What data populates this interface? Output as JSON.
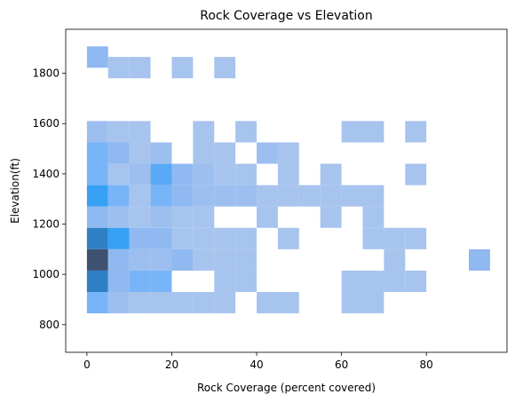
{
  "chart_data": {
    "type": "heatmap",
    "title": "Rock Coverage vs Elevation",
    "xlabel": "Rock Coverage (percent covered)",
    "ylabel": "Elevation(ft)",
    "xlim": [
      -5,
      99
    ],
    "ylim": [
      690,
      1975
    ],
    "x_ticks": [
      0,
      20,
      40,
      60,
      80
    ],
    "y_ticks": [
      800,
      1000,
      1200,
      1400,
      1600,
      1800
    ],
    "x_bin_width": 5,
    "y_bin_width": 85,
    "y_bin_start": 715,
    "grid": false,
    "colors": {
      "light": "#a7c4ee",
      "mid1": "#8fb9f0",
      "mid2": "#78b4f8",
      "mid3": "#5aa9f7",
      "bright": "#36a0f5",
      "dark1": "#2f7fc4",
      "dark2": "#2a6aa4",
      "darkest": "#3f5170"
    },
    "bins": [
      {
        "x": 0,
        "y": 1822,
        "color": "#8fb9f0"
      },
      {
        "x": 5,
        "y": 1780,
        "color": "#a7c4ee"
      },
      {
        "x": 10,
        "y": 1780,
        "color": "#a7c4ee"
      },
      {
        "x": 20,
        "y": 1780,
        "color": "#a7c4ee"
      },
      {
        "x": 30,
        "y": 1780,
        "color": "#a7c4ee"
      },
      {
        "x": 0,
        "y": 1525,
        "color": "#9dbff0"
      },
      {
        "x": 5,
        "y": 1525,
        "color": "#a7c4ee"
      },
      {
        "x": 10,
        "y": 1525,
        "color": "#a7c4ee"
      },
      {
        "x": 25,
        "y": 1525,
        "color": "#a7c4ee"
      },
      {
        "x": 35,
        "y": 1525,
        "color": "#a7c4ee"
      },
      {
        "x": 60,
        "y": 1525,
        "color": "#a7c4ee"
      },
      {
        "x": 65,
        "y": 1525,
        "color": "#a7c4ee"
      },
      {
        "x": 75,
        "y": 1525,
        "color": "#a7c4ee"
      },
      {
        "x": 0,
        "y": 1440,
        "color": "#78b4f8"
      },
      {
        "x": 5,
        "y": 1440,
        "color": "#8fb9f0"
      },
      {
        "x": 10,
        "y": 1440,
        "color": "#a7c4ee"
      },
      {
        "x": 15,
        "y": 1440,
        "color": "#9dbff0"
      },
      {
        "x": 25,
        "y": 1440,
        "color": "#a7c4ee"
      },
      {
        "x": 30,
        "y": 1440,
        "color": "#a7c4ee"
      },
      {
        "x": 40,
        "y": 1440,
        "color": "#9dbff0"
      },
      {
        "x": 45,
        "y": 1440,
        "color": "#a7c4ee"
      },
      {
        "x": 0,
        "y": 1355,
        "color": "#78b4f8"
      },
      {
        "x": 5,
        "y": 1355,
        "color": "#a7c4ee"
      },
      {
        "x": 10,
        "y": 1355,
        "color": "#9dbff0"
      },
      {
        "x": 15,
        "y": 1355,
        "color": "#5aa9f7"
      },
      {
        "x": 20,
        "y": 1355,
        "color": "#8fb9f0"
      },
      {
        "x": 25,
        "y": 1355,
        "color": "#9dbff0"
      },
      {
        "x": 30,
        "y": 1355,
        "color": "#a7c4ee"
      },
      {
        "x": 35,
        "y": 1355,
        "color": "#a7c4ee"
      },
      {
        "x": 45,
        "y": 1355,
        "color": "#a7c4ee"
      },
      {
        "x": 55,
        "y": 1355,
        "color": "#a7c4ee"
      },
      {
        "x": 75,
        "y": 1355,
        "color": "#a7c4ee"
      },
      {
        "x": 0,
        "y": 1270,
        "color": "#36a0f5"
      },
      {
        "x": 5,
        "y": 1270,
        "color": "#78b4f8"
      },
      {
        "x": 10,
        "y": 1270,
        "color": "#a7c4ee"
      },
      {
        "x": 15,
        "y": 1270,
        "color": "#78b4f8"
      },
      {
        "x": 20,
        "y": 1270,
        "color": "#8fb9f0"
      },
      {
        "x": 25,
        "y": 1270,
        "color": "#9dbff0"
      },
      {
        "x": 30,
        "y": 1270,
        "color": "#9dbff0"
      },
      {
        "x": 35,
        "y": 1270,
        "color": "#9dbff0"
      },
      {
        "x": 40,
        "y": 1270,
        "color": "#a7c4ee"
      },
      {
        "x": 45,
        "y": 1270,
        "color": "#a7c4ee"
      },
      {
        "x": 50,
        "y": 1270,
        "color": "#a7c4ee"
      },
      {
        "x": 55,
        "y": 1270,
        "color": "#a7c4ee"
      },
      {
        "x": 60,
        "y": 1270,
        "color": "#a7c4ee"
      },
      {
        "x": 65,
        "y": 1270,
        "color": "#a7c4ee"
      },
      {
        "x": 0,
        "y": 1185,
        "color": "#8fb9f0"
      },
      {
        "x": 5,
        "y": 1185,
        "color": "#9dbff0"
      },
      {
        "x": 10,
        "y": 1185,
        "color": "#a7c4ee"
      },
      {
        "x": 15,
        "y": 1185,
        "color": "#9dbff0"
      },
      {
        "x": 20,
        "y": 1185,
        "color": "#a7c4ee"
      },
      {
        "x": 25,
        "y": 1185,
        "color": "#a7c4ee"
      },
      {
        "x": 40,
        "y": 1185,
        "color": "#a7c4ee"
      },
      {
        "x": 55,
        "y": 1185,
        "color": "#a7c4ee"
      },
      {
        "x": 65,
        "y": 1185,
        "color": "#a7c4ee"
      },
      {
        "x": 0,
        "y": 1100,
        "color": "#2f7fc4"
      },
      {
        "x": 5,
        "y": 1100,
        "color": "#36a0f5"
      },
      {
        "x": 10,
        "y": 1100,
        "color": "#8fb9f0"
      },
      {
        "x": 15,
        "y": 1100,
        "color": "#8fb9f0"
      },
      {
        "x": 20,
        "y": 1100,
        "color": "#a7c4ee"
      },
      {
        "x": 25,
        "y": 1100,
        "color": "#a7c4ee"
      },
      {
        "x": 30,
        "y": 1100,
        "color": "#a7c4ee"
      },
      {
        "x": 35,
        "y": 1100,
        "color": "#a7c4ee"
      },
      {
        "x": 45,
        "y": 1100,
        "color": "#a7c4ee"
      },
      {
        "x": 65,
        "y": 1100,
        "color": "#a7c4ee"
      },
      {
        "x": 70,
        "y": 1100,
        "color": "#a7c4ee"
      },
      {
        "x": 75,
        "y": 1100,
        "color": "#a7c4ee"
      },
      {
        "x": 0,
        "y": 1015,
        "color": "#3f5170"
      },
      {
        "x": 5,
        "y": 1015,
        "color": "#8fb9f0"
      },
      {
        "x": 10,
        "y": 1015,
        "color": "#9dbff0"
      },
      {
        "x": 15,
        "y": 1015,
        "color": "#9dbff0"
      },
      {
        "x": 20,
        "y": 1015,
        "color": "#8fb9f0"
      },
      {
        "x": 25,
        "y": 1015,
        "color": "#a7c4ee"
      },
      {
        "x": 30,
        "y": 1015,
        "color": "#a7c4ee"
      },
      {
        "x": 35,
        "y": 1015,
        "color": "#a7c4ee"
      },
      {
        "x": 70,
        "y": 1015,
        "color": "#a7c4ee"
      },
      {
        "x": 90,
        "y": 1015,
        "color": "#8fb9f0"
      },
      {
        "x": 0,
        "y": 930,
        "color": "#2f7fc4"
      },
      {
        "x": 5,
        "y": 930,
        "color": "#8fb9f0"
      },
      {
        "x": 10,
        "y": 930,
        "color": "#78b4f8"
      },
      {
        "x": 15,
        "y": 930,
        "color": "#78b4f8"
      },
      {
        "x": 30,
        "y": 930,
        "color": "#a7c4ee"
      },
      {
        "x": 35,
        "y": 930,
        "color": "#a7c4ee"
      },
      {
        "x": 60,
        "y": 930,
        "color": "#a7c4ee"
      },
      {
        "x": 65,
        "y": 930,
        "color": "#a7c4ee"
      },
      {
        "x": 70,
        "y": 930,
        "color": "#a7c4ee"
      },
      {
        "x": 75,
        "y": 930,
        "color": "#a7c4ee"
      },
      {
        "x": 0,
        "y": 845,
        "color": "#78b4f8"
      },
      {
        "x": 5,
        "y": 845,
        "color": "#9dbff0"
      },
      {
        "x": 10,
        "y": 845,
        "color": "#a7c4ee"
      },
      {
        "x": 15,
        "y": 845,
        "color": "#a7c4ee"
      },
      {
        "x": 20,
        "y": 845,
        "color": "#a7c4ee"
      },
      {
        "x": 25,
        "y": 845,
        "color": "#a7c4ee"
      },
      {
        "x": 30,
        "y": 845,
        "color": "#a7c4ee"
      },
      {
        "x": 40,
        "y": 845,
        "color": "#a7c4ee"
      },
      {
        "x": 45,
        "y": 845,
        "color": "#a7c4ee"
      },
      {
        "x": 60,
        "y": 845,
        "color": "#a7c4ee"
      },
      {
        "x": 65,
        "y": 845,
        "color": "#a7c4ee"
      }
    ]
  }
}
